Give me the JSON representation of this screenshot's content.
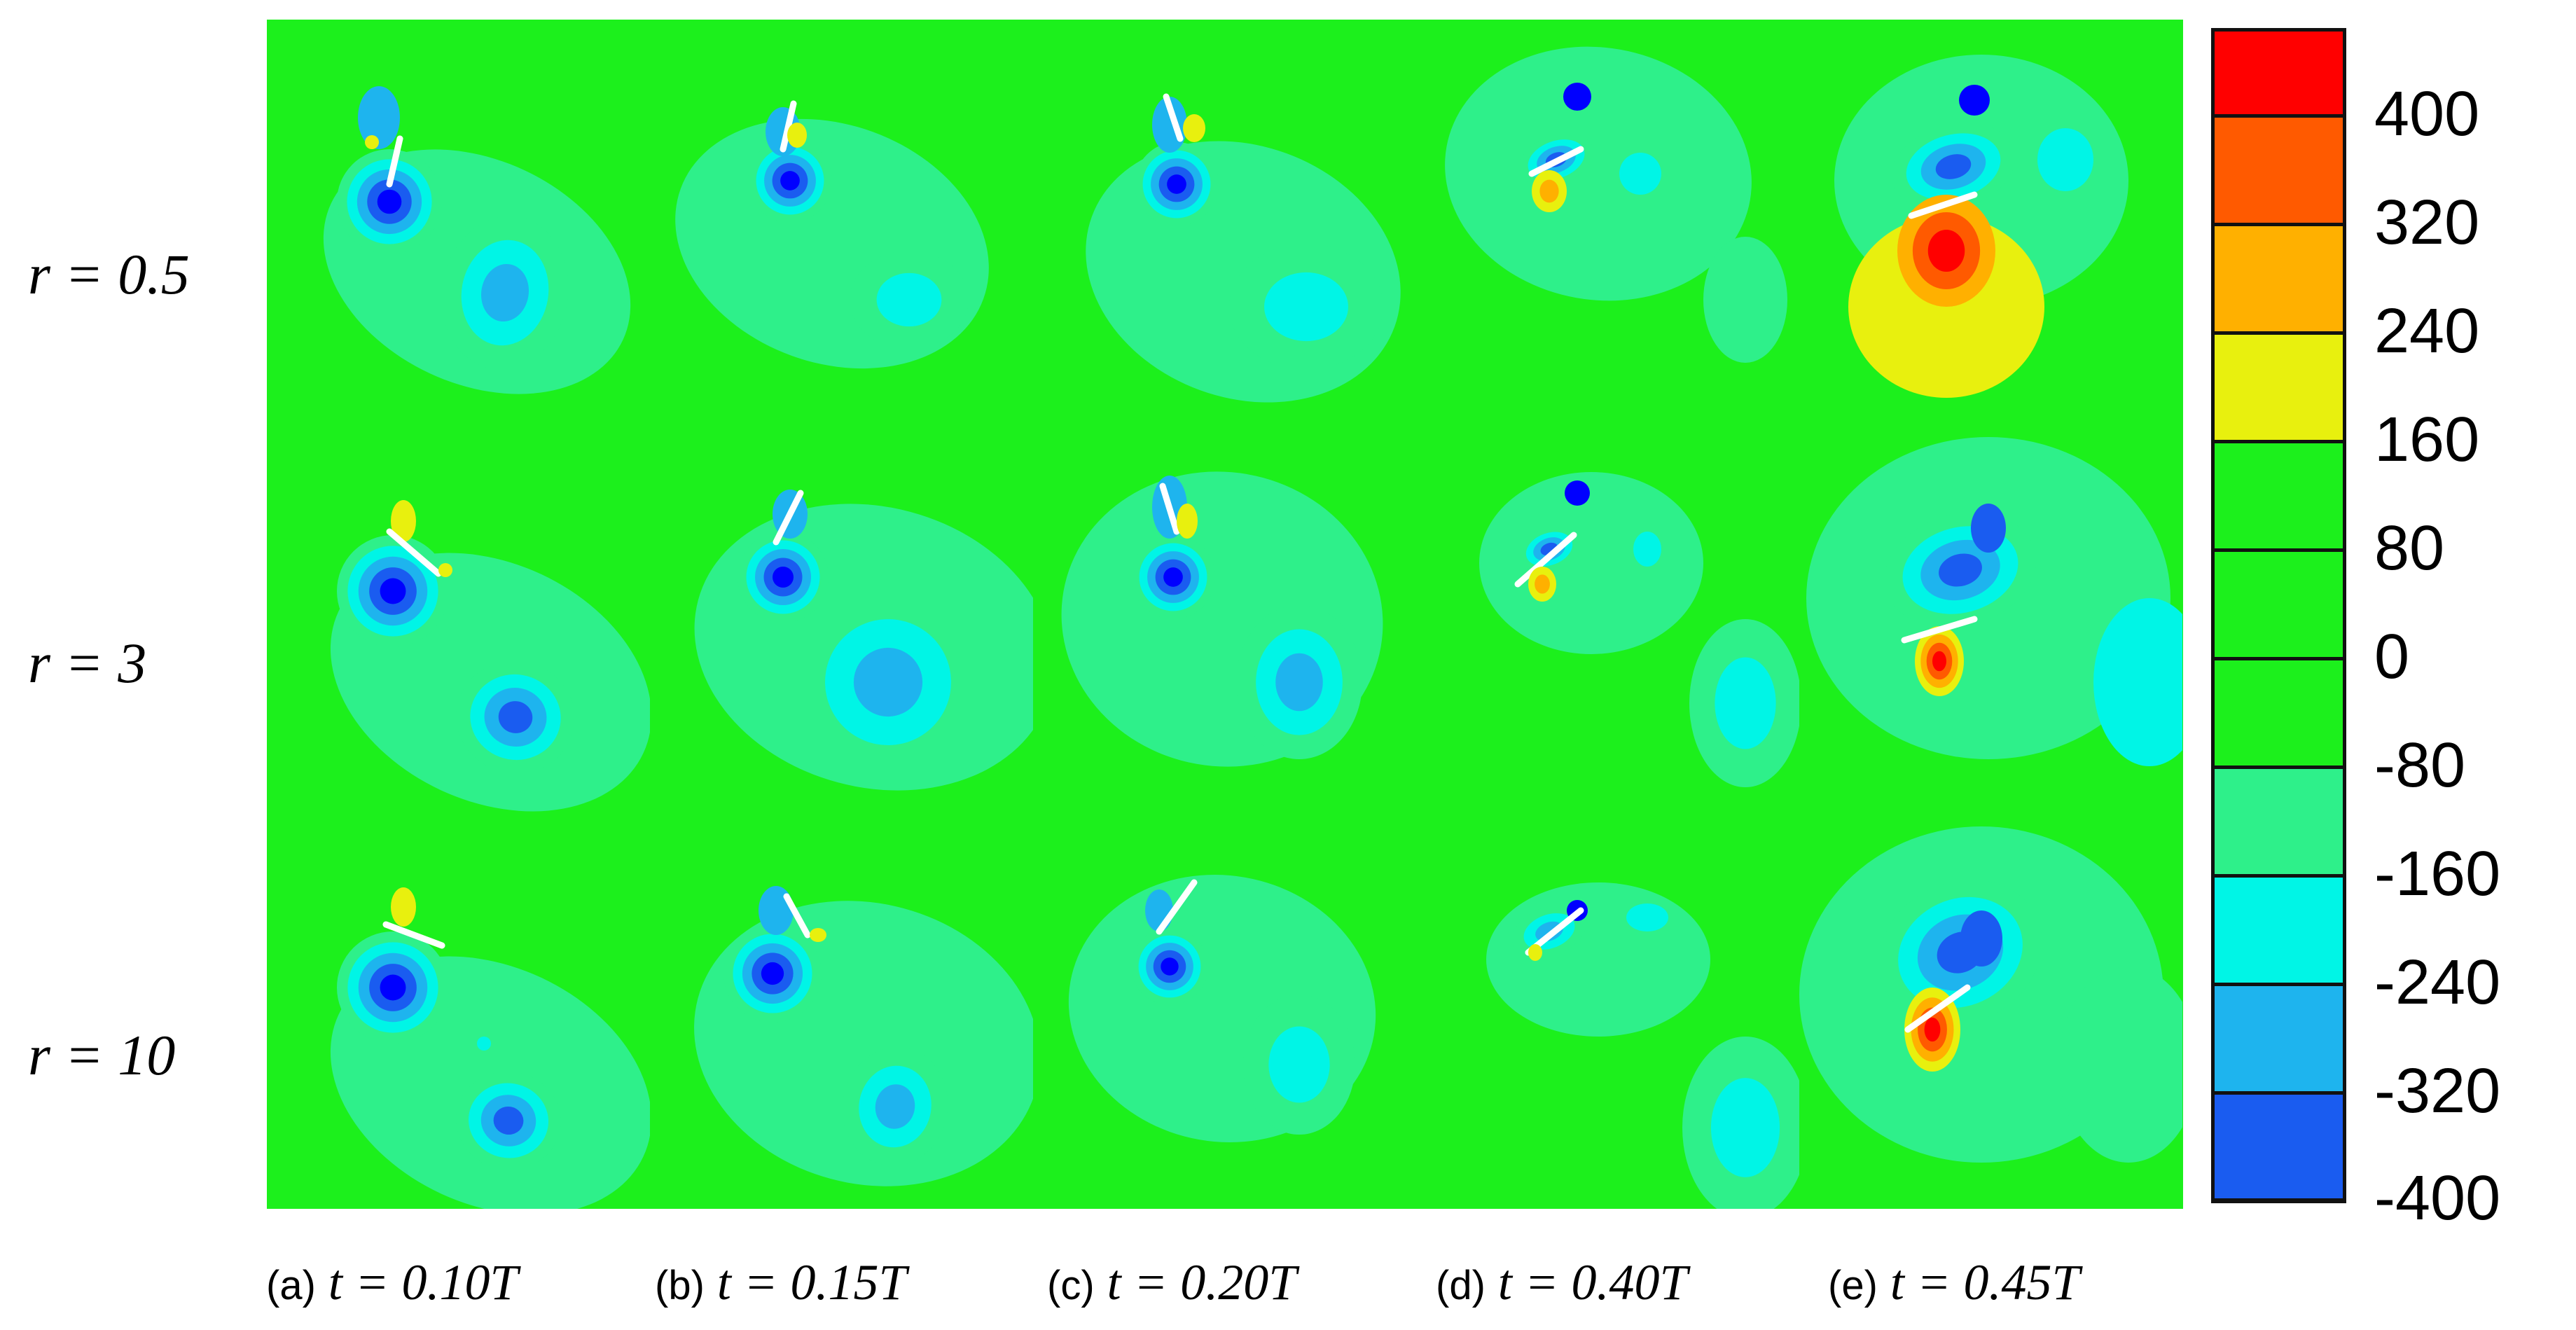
{
  "row_labels": [
    "r = 0.5",
    "r = 3",
    "r = 10"
  ],
  "columns": [
    {
      "tag": "(a)",
      "time": "t = 0.10T"
    },
    {
      "tag": "(b)",
      "time": "t = 0.15T"
    },
    {
      "tag": "(c)",
      "time": "t = 0.20T"
    },
    {
      "tag": "(d)",
      "time": "t = 0.40T"
    },
    {
      "tag": "(e)",
      "time": "t = 0.45T"
    }
  ],
  "colorbar": {
    "levels": [
      "400",
      "320",
      "240",
      "160",
      "80",
      "0",
      "-80",
      "-160",
      "-240",
      "-320",
      "-400"
    ],
    "band_colors": [
      "#ff0000",
      "#ff5a00",
      "#ffb000",
      "#e8f00e",
      "#1cf01c",
      "#1cf01c",
      "#1cf01c",
      "#2ef08a",
      "#00f5e6",
      "#1eb4ee",
      "#1a5cf0",
      "#0000ff"
    ]
  },
  "contour_colors": {
    "background": "#1cf01c",
    "light_green": "#2ef08a",
    "cyan": "#00f5e6",
    "light_blue": "#1eb4ee",
    "mid_blue": "#1a5cf0",
    "deep_blue": "#0000ff",
    "yellow": "#e8f00e",
    "orange": "#ffb000",
    "dark_orange": "#ff5a00",
    "red": "#ff0000",
    "plate": "#ffffff"
  }
}
